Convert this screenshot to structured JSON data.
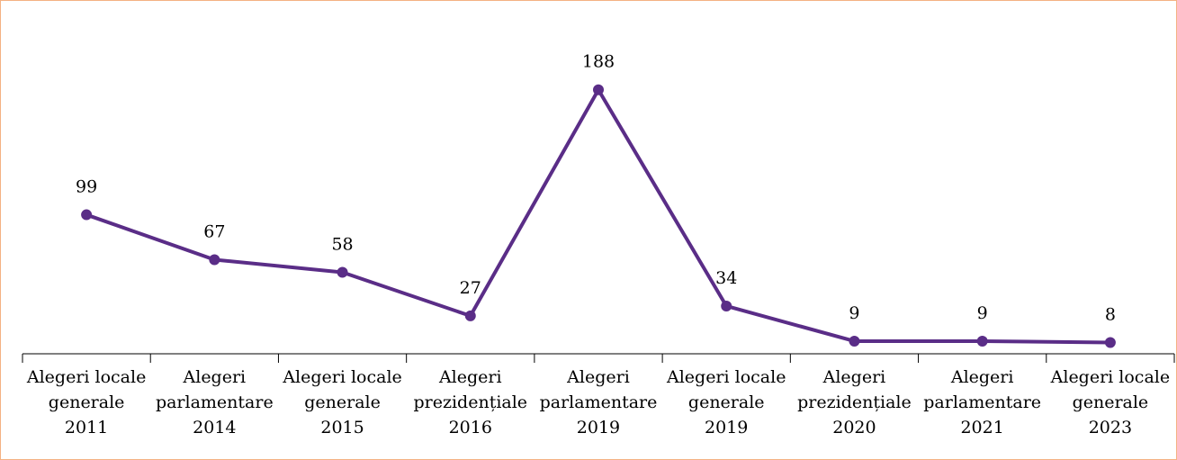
{
  "chart_data": {
    "type": "line",
    "categories": [
      "Alegeri locale\ngenerale\n2011",
      "Alegeri\nparlamentare\n2014",
      "Alegeri locale\ngenerale\n2015",
      "Alegeri\nprezidențiale\n2016",
      "Alegeri\nparlamentare\n2019",
      "Alegeri locale\ngenerale\n2019",
      "Alegeri\nprezidențiale\n2020",
      "Alegeri\nparlamentare\n2021",
      "Alegeri locale\ngenerale\n2023"
    ],
    "values": [
      99,
      67,
      58,
      27,
      188,
      34,
      9,
      9,
      8
    ],
    "color": "#5a2d87",
    "ylim": [
      0,
      200
    ]
  }
}
